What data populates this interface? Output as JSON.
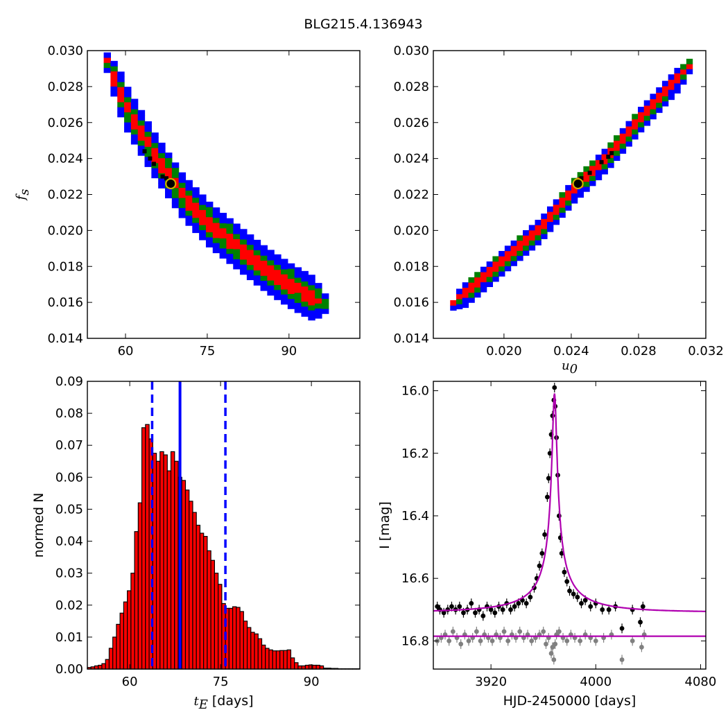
{
  "figure": {
    "title": "BLG215.4.136943"
  },
  "colors": {
    "outer_contour": "#0000ff",
    "mid_contour": "#008000",
    "inner_contour": "#ff0000",
    "samples": "#000000",
    "best_fit_marker_edge": "#d4b000",
    "histogram_bar": "#ff0000",
    "median_line": "#0000ff",
    "model_curve": "#b000b0",
    "data_primary": "#000000",
    "data_residual": "#808080"
  },
  "chart_data": [
    {
      "id": "panel_tE_fs",
      "type": "heatmap",
      "xlabel": "",
      "ylabel": "f_s",
      "xlim": [
        53,
        103
      ],
      "ylim": [
        0.014,
        0.03
      ],
      "xticks": [
        60,
        75,
        90
      ],
      "xtick_labels": [
        "60",
        "75",
        "90"
      ],
      "yticks": [
        0.014,
        0.016,
        0.018,
        0.02,
        0.022,
        0.024,
        0.026,
        0.028,
        0.03
      ],
      "ytick_labels": [
        "0.014",
        "0.016",
        "0.018",
        "0.020",
        "0.022",
        "0.024",
        "0.026",
        "0.028",
        "0.030"
      ],
      "description": "2D posterior density contours of f_s vs t_E (blue outer, green middle, red inner)",
      "ridge": [
        [
          56,
          0.0292
        ],
        [
          60,
          0.0265
        ],
        [
          65,
          0.024
        ],
        [
          70,
          0.0218
        ],
        [
          75,
          0.0202
        ],
        [
          80,
          0.019
        ],
        [
          85,
          0.0178
        ],
        [
          90,
          0.0168
        ],
        [
          96,
          0.0158
        ]
      ],
      "best_fit": {
        "x": 68.3,
        "y": 0.0226
      },
      "samples": [
        [
          63.5,
          0.0244
        ],
        [
          64.5,
          0.024
        ],
        [
          65.2,
          0.0237
        ],
        [
          66.8,
          0.023
        ],
        [
          67.5,
          0.0229
        ],
        [
          68.3,
          0.0226
        ]
      ]
    },
    {
      "id": "panel_u0_fs",
      "type": "heatmap",
      "xlabel": "u_0",
      "ylabel": "",
      "xlim": [
        0.0158,
        0.032
      ],
      "ylim": [
        0.014,
        0.03
      ],
      "xticks": [
        0.02,
        0.024,
        0.028,
        0.032
      ],
      "xtick_labels": [
        "0.020",
        "0.024",
        "0.028",
        "0.032"
      ],
      "yticks": [
        0.014,
        0.016,
        0.018,
        0.02,
        0.022,
        0.024,
        0.026,
        0.028,
        0.03
      ],
      "ytick_labels": [
        "0.014",
        "0.016",
        "0.018",
        "0.020",
        "0.022",
        "0.024",
        "0.026",
        "0.028",
        "0.030"
      ],
      "description": "2D posterior density contours of f_s vs u_0, nearly linear correlation",
      "ridge": [
        [
          0.0168,
          0.0158
        ],
        [
          0.02,
          0.0184
        ],
        [
          0.022,
          0.02
        ],
        [
          0.024,
          0.0222
        ],
        [
          0.026,
          0.024
        ],
        [
          0.028,
          0.0262
        ],
        [
          0.031,
          0.0292
        ]
      ],
      "best_fit": {
        "x": 0.0244,
        "y": 0.0226
      },
      "samples": [
        [
          0.0246,
          0.0229
        ],
        [
          0.0251,
          0.0232
        ],
        [
          0.0258,
          0.0238
        ],
        [
          0.0262,
          0.0241
        ],
        [
          0.0264,
          0.0243
        ]
      ]
    },
    {
      "id": "panel_tE_hist",
      "type": "bar",
      "xlabel": "t_E [days]",
      "ylabel": "normed N",
      "xlim": [
        53,
        98
      ],
      "ylim": [
        0.0,
        0.09
      ],
      "xticks": [
        60,
        75,
        90
      ],
      "xtick_labels": [
        "60",
        "75",
        "90"
      ],
      "yticks": [
        0.0,
        0.01,
        0.02,
        0.03,
        0.04,
        0.05,
        0.06,
        0.07,
        0.08,
        0.09
      ],
      "ytick_labels": [
        "0.00",
        "0.01",
        "0.02",
        "0.03",
        "0.04",
        "0.05",
        "0.06",
        "0.07",
        "0.08",
        "0.09"
      ],
      "bin_width": 0.6,
      "bin_start": 53.0,
      "values": [
        0.0005,
        0.0007,
        0.001,
        0.0012,
        0.0017,
        0.003,
        0.0065,
        0.01,
        0.014,
        0.0175,
        0.021,
        0.0245,
        0.03,
        0.043,
        0.052,
        0.0755,
        0.0765,
        0.072,
        0.0675,
        0.065,
        0.068,
        0.067,
        0.062,
        0.068,
        0.065,
        0.06,
        0.059,
        0.056,
        0.0525,
        0.049,
        0.045,
        0.0425,
        0.0415,
        0.037,
        0.034,
        0.03,
        0.0265,
        0.0205,
        0.019,
        0.019,
        0.0195,
        0.0193,
        0.018,
        0.015,
        0.013,
        0.0115,
        0.011,
        0.0095,
        0.0075,
        0.0065,
        0.006,
        0.0057,
        0.0057,
        0.0058,
        0.0058,
        0.006,
        0.0035,
        0.002,
        0.001,
        0.001,
        0.0012,
        0.0013,
        0.0012,
        0.0012,
        0.001,
        0.0003,
        0.0003,
        0.0002,
        0.0002,
        0.0001,
        0.0001,
        0.0001,
        0.0001,
        0.0001,
        0.0001
      ],
      "median": 68.3,
      "percentile_lines": [
        63.7,
        75.8
      ]
    },
    {
      "id": "panel_lightcurve",
      "type": "scatter",
      "xlabel": "HJD-2450000 [days]",
      "ylabel": "I [mag]",
      "xlim": [
        3876,
        4084
      ],
      "ylim": [
        16.89,
        15.97
      ],
      "y_inverted": true,
      "xticks": [
        3920,
        4000,
        4080
      ],
      "xtick_labels": [
        "3920",
        "4000",
        "4080"
      ],
      "yticks": [
        16.0,
        16.2,
        16.4,
        16.6,
        16.8
      ],
      "ytick_labels": [
        "16.0",
        "16.2",
        "16.4",
        "16.6",
        "16.8"
      ],
      "model": {
        "t0": 3968.5,
        "baseline_mag": 16.708,
        "peak_mag": 16.04,
        "tE": 68.3,
        "u0": 0.0244,
        "fs": 0.0226
      },
      "residual_baseline": 16.785,
      "series": [
        {
          "name": "",
          "kind": "data",
          "color": "#000000",
          "points": [
            [
              3879,
              16.69
            ],
            [
              3881,
              16.7
            ],
            [
              3884,
              16.71
            ],
            [
              3887,
              16.7
            ],
            [
              3890,
              16.69
            ],
            [
              3893,
              16.7
            ],
            [
              3896,
              16.69
            ],
            [
              3899,
              16.71
            ],
            [
              3902,
              16.7
            ],
            [
              3905,
              16.68
            ],
            [
              3908,
              16.71
            ],
            [
              3911,
              16.7
            ],
            [
              3914,
              16.72
            ],
            [
              3917,
              16.69
            ],
            [
              3920,
              16.7
            ],
            [
              3923,
              16.71
            ],
            [
              3926,
              16.69
            ],
            [
              3929,
              16.7
            ],
            [
              3932,
              16.68
            ],
            [
              3935,
              16.7
            ],
            [
              3938,
              16.69
            ],
            [
              3941,
              16.68
            ],
            [
              3944,
              16.67
            ],
            [
              3947,
              16.68
            ],
            [
              3950,
              16.66
            ],
            [
              3953,
              16.63
            ],
            [
              3955,
              16.6
            ],
            [
              3957,
              16.56
            ],
            [
              3959,
              16.52
            ],
            [
              3961,
              16.46
            ],
            [
              3963,
              16.34
            ],
            [
              3964,
              16.28
            ],
            [
              3965,
              16.2
            ],
            [
              3966,
              16.14
            ],
            [
              3967,
              16.08
            ],
            [
              3968,
              16.03
            ],
            [
              3968.5,
              15.99
            ],
            [
              3969,
              16.05
            ],
            [
              3970,
              16.15
            ],
            [
              3971,
              16.27
            ],
            [
              3972,
              16.4
            ],
            [
              3973,
              16.47
            ],
            [
              3974,
              16.52
            ],
            [
              3976,
              16.58
            ],
            [
              3978,
              16.61
            ],
            [
              3980,
              16.64
            ],
            [
              3983,
              16.65
            ],
            [
              3986,
              16.66
            ],
            [
              3989,
              16.68
            ],
            [
              3992,
              16.67
            ],
            [
              3996,
              16.69
            ],
            [
              4000,
              16.68
            ],
            [
              4005,
              16.7
            ],
            [
              4010,
              16.7
            ],
            [
              4015,
              16.69
            ],
            [
              4020,
              16.76
            ],
            [
              4028,
              16.7
            ],
            [
              4034,
              16.74
            ],
            [
              4036,
              16.69
            ]
          ]
        },
        {
          "name": "",
          "kind": "residual",
          "color": "#808080",
          "points": [
            [
              3879,
              16.8
            ],
            [
              3882,
              16.79
            ],
            [
              3885,
              16.78
            ],
            [
              3888,
              16.8
            ],
            [
              3891,
              16.77
            ],
            [
              3894,
              16.79
            ],
            [
              3897,
              16.81
            ],
            [
              3900,
              16.78
            ],
            [
              3903,
              16.8
            ],
            [
              3906,
              16.79
            ],
            [
              3909,
              16.77
            ],
            [
              3912,
              16.8
            ],
            [
              3915,
              16.78
            ],
            [
              3918,
              16.79
            ],
            [
              3921,
              16.8
            ],
            [
              3924,
              16.78
            ],
            [
              3927,
              16.79
            ],
            [
              3930,
              16.77
            ],
            [
              3933,
              16.8
            ],
            [
              3936,
              16.78
            ],
            [
              3939,
              16.79
            ],
            [
              3942,
              16.77
            ],
            [
              3945,
              16.79
            ],
            [
              3948,
              16.78
            ],
            [
              3951,
              16.8
            ],
            [
              3954,
              16.79
            ],
            [
              3957,
              16.78
            ],
            [
              3960,
              16.77
            ],
            [
              3962,
              16.81
            ],
            [
              3964,
              16.79
            ],
            [
              3966,
              16.84
            ],
            [
              3967,
              16.82
            ],
            [
              3968,
              16.86
            ],
            [
              3969,
              16.81
            ],
            [
              3970,
              16.78
            ],
            [
              3972,
              16.77
            ],
            [
              3975,
              16.79
            ],
            [
              3978,
              16.8
            ],
            [
              3981,
              16.78
            ],
            [
              3984,
              16.79
            ],
            [
              3988,
              16.8
            ],
            [
              3992,
              16.78
            ],
            [
              3996,
              16.79
            ],
            [
              4000,
              16.8
            ],
            [
              4006,
              16.79
            ],
            [
              4012,
              16.78
            ],
            [
              4020,
              16.86
            ],
            [
              4028,
              16.8
            ],
            [
              4035,
              16.82
            ],
            [
              4037,
              16.78
            ]
          ]
        }
      ]
    }
  ]
}
